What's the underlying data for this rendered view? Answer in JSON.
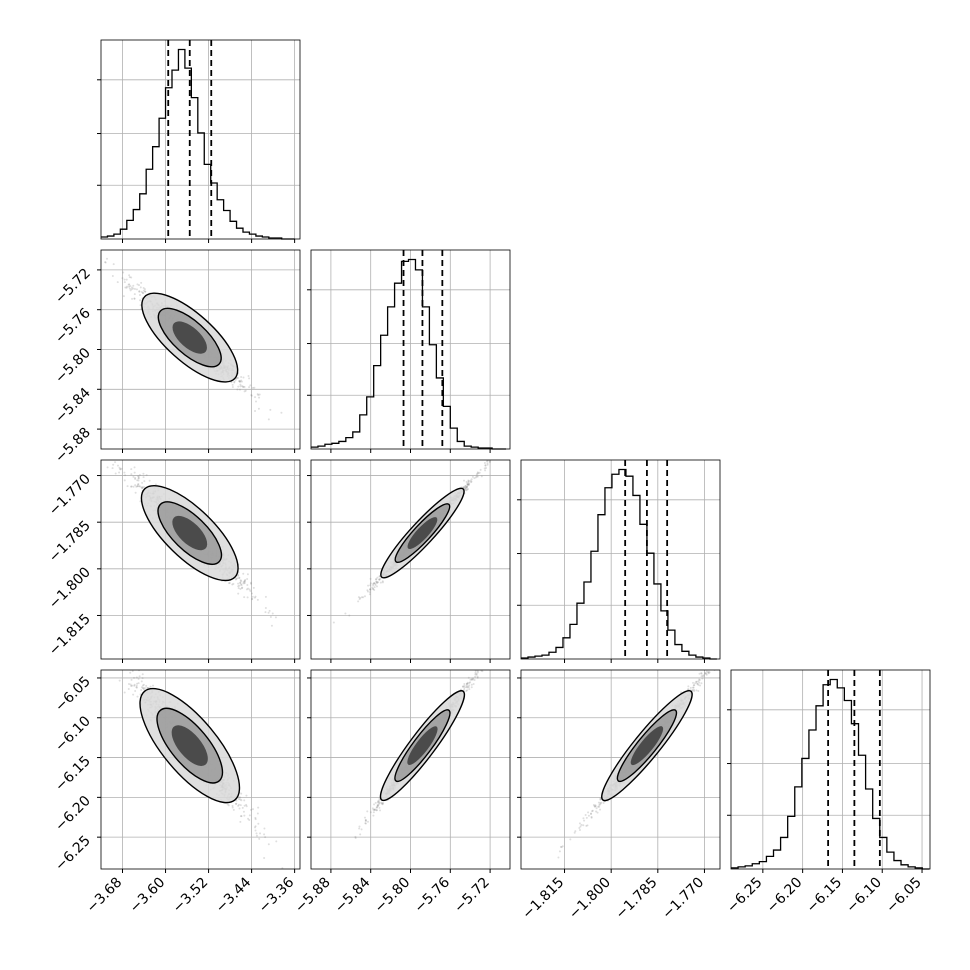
{
  "chart_data": {
    "type": "corner",
    "grid": true,
    "parameters": [
      {
        "range": [
          -3.72,
          -3.35
        ],
        "ticks": [
          -3.68,
          -3.6,
          -3.52,
          -3.44,
          -3.36
        ],
        "tick_labels": [
          "−3.68",
          "−3.60",
          "−3.52",
          "−3.44",
          "−3.36"
        ],
        "quantiles": [
          -3.595,
          -3.555,
          -3.515
        ],
        "hist_bins": [
          -3.72,
          -3.708,
          -3.696,
          -3.684,
          -3.672,
          -3.66,
          -3.648,
          -3.636,
          -3.624,
          -3.612,
          -3.6,
          -3.588,
          -3.576,
          -3.564,
          -3.552,
          -3.54,
          -3.528,
          -3.516,
          -3.504,
          -3.492,
          -3.48,
          -3.468,
          -3.456,
          -3.444,
          -3.432,
          -3.42,
          -3.408,
          -3.396,
          -3.384,
          -3.372,
          -3.36
        ],
        "hist_counts": [
          2,
          3,
          5,
          10,
          19,
          30,
          46,
          71,
          94,
          123,
          154,
          172,
          193,
          174,
          144,
          108,
          76,
          57,
          40,
          29,
          18,
          11,
          7,
          5,
          3,
          2,
          1,
          1,
          0,
          0
        ]
      },
      {
        "range": [
          -5.9,
          -5.7
        ],
        "ticks": [
          -5.88,
          -5.84,
          -5.8,
          -5.76,
          -5.72
        ],
        "tick_labels": [
          "−5.88",
          "−5.84",
          "−5.80",
          "−5.76",
          "−5.72"
        ],
        "quantiles": [
          -5.807,
          -5.788,
          -5.768
        ],
        "hist_bins": [
          -5.9,
          -5.893,
          -5.886,
          -5.879,
          -5.872,
          -5.865,
          -5.858,
          -5.851,
          -5.844,
          -5.837,
          -5.83,
          -5.823,
          -5.816,
          -5.809,
          -5.802,
          -5.795,
          -5.788,
          -5.781,
          -5.774,
          -5.767,
          -5.76,
          -5.753,
          -5.746,
          -5.739,
          -5.732,
          -5.725,
          -5.718,
          -5.711,
          -5.704
        ],
        "hist_counts": [
          2,
          3,
          5,
          6,
          8,
          12,
          18,
          36,
          55,
          88,
          120,
          150,
          175,
          198,
          200,
          189,
          150,
          110,
          75,
          45,
          22,
          8,
          3,
          2,
          1,
          1,
          0,
          0
        ]
      },
      {
        "range": [
          -1.829,
          -1.765
        ],
        "ticks": [
          -1.815,
          -1.8,
          -1.785,
          -1.77
        ],
        "tick_labels": [
          "−1.815",
          "−1.800",
          "−1.785",
          "−1.770"
        ],
        "quantiles": [
          -1.7955,
          -1.7885,
          -1.782
        ],
        "hist_bins": [
          -1.829,
          -1.82675,
          -1.8245,
          -1.82225,
          -1.82,
          -1.81775,
          -1.8155,
          -1.81325,
          -1.811,
          -1.80875,
          -1.8065,
          -1.80425,
          -1.802,
          -1.79975,
          -1.7975,
          -1.79525,
          -1.793,
          -1.79075,
          -1.7885,
          -1.78625,
          -1.784,
          -1.78175,
          -1.7795,
          -1.77725,
          -1.775,
          -1.77275,
          -1.7705,
          -1.76825,
          -1.766
        ],
        "hist_counts": [
          1,
          2,
          3,
          4,
          7,
          12,
          22,
          36,
          58,
          80,
          112,
          150,
          178,
          192,
          197,
          190,
          170,
          140,
          110,
          78,
          50,
          30,
          15,
          8,
          4,
          2,
          1,
          0
        ]
      },
      {
        "range": [
          -6.29,
          -6.04
        ],
        "ticks": [
          -6.25,
          -6.2,
          -6.15,
          -6.1,
          -6.05
        ],
        "tick_labels": [
          "−6.25",
          "−6.20",
          "−6.15",
          "−6.10",
          "−6.05"
        ],
        "quantiles": [
          -6.168,
          -6.135,
          -6.103
        ],
        "hist_bins": [
          -6.29,
          -6.2811,
          -6.2722,
          -6.2633,
          -6.2544,
          -6.2455,
          -6.2366,
          -6.2277,
          -6.2188,
          -6.2099,
          -6.201,
          -6.1921,
          -6.1832,
          -6.1743,
          -6.1654,
          -6.1565,
          -6.1476,
          -6.1387,
          -6.1298,
          -6.1209,
          -6.112,
          -6.1031,
          -6.0942,
          -6.0853,
          -6.0764,
          -6.0675,
          -6.0586,
          -6.0497,
          -6.0408
        ],
        "hist_counts": [
          1,
          2,
          3,
          5,
          7,
          12,
          18,
          30,
          50,
          78,
          105,
          132,
          155,
          175,
          180,
          172,
          160,
          138,
          108,
          76,
          48,
          30,
          16,
          8,
          4,
          2,
          1,
          0
        ]
      }
    ],
    "colors": {
      "contour_line": "#000000",
      "scatter": "#7f7f7f",
      "grid": "#b0b0b0"
    }
  }
}
